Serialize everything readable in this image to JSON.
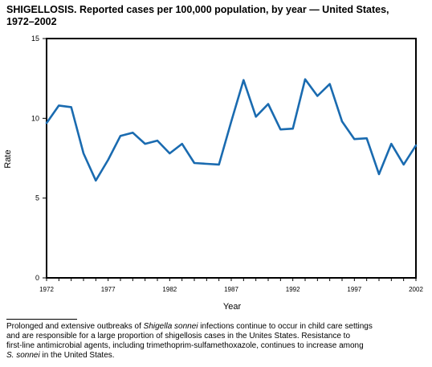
{
  "title": {
    "line1": "SHIGELLOSIS. Reported cases per 100,000 population, by year — United States,",
    "line2": "1972–2002"
  },
  "chart_data": {
    "type": "line",
    "xlabel": "Year",
    "ylabel": "Rate",
    "xlim": [
      1972,
      2002
    ],
    "ylim": [
      0,
      15
    ],
    "yticks": [
      0,
      5,
      10,
      15
    ],
    "xticks": [
      1972,
      1977,
      1982,
      1987,
      1992,
      1997,
      2002
    ],
    "grid": false,
    "line_color": "#1a6bb0",
    "series": [
      {
        "x": [
          1972,
          1973,
          1974,
          1975,
          1976,
          1977,
          1978,
          1979,
          1980,
          1981,
          1982,
          1983,
          1984,
          1985,
          1986,
          1987,
          1988,
          1989,
          1990,
          1991,
          1992,
          1993,
          1994,
          1995,
          1996,
          1997,
          1998,
          1999,
          2000,
          2001,
          2002
        ],
        "values": [
          9.7,
          10.8,
          10.7,
          7.8,
          6.1,
          7.4,
          8.9,
          9.1,
          8.4,
          8.6,
          7.8,
          8.4,
          7.2,
          7.15,
          7.1,
          9.8,
          12.4,
          10.1,
          10.9,
          9.3,
          9.35,
          12.45,
          11.4,
          12.15,
          9.8,
          8.7,
          8.75,
          6.5,
          8.4,
          7.1,
          8.3
        ]
      }
    ]
  },
  "footnote": {
    "line1_a": "Prolonged and extensive outbreaks of ",
    "line1_i": "Shigella sonnei",
    "line1_b": " infections continue to occur in child care settings",
    "line2": "and are responsible for a large proportion of shigellosis cases in the Unites States. Resistance to",
    "line3": "first-line antimicrobial agents, including trimethoprim-sulfamethoxazole, continues to increase among",
    "line4_i": "S. sonnei",
    "line4_b": " in the United States."
  }
}
